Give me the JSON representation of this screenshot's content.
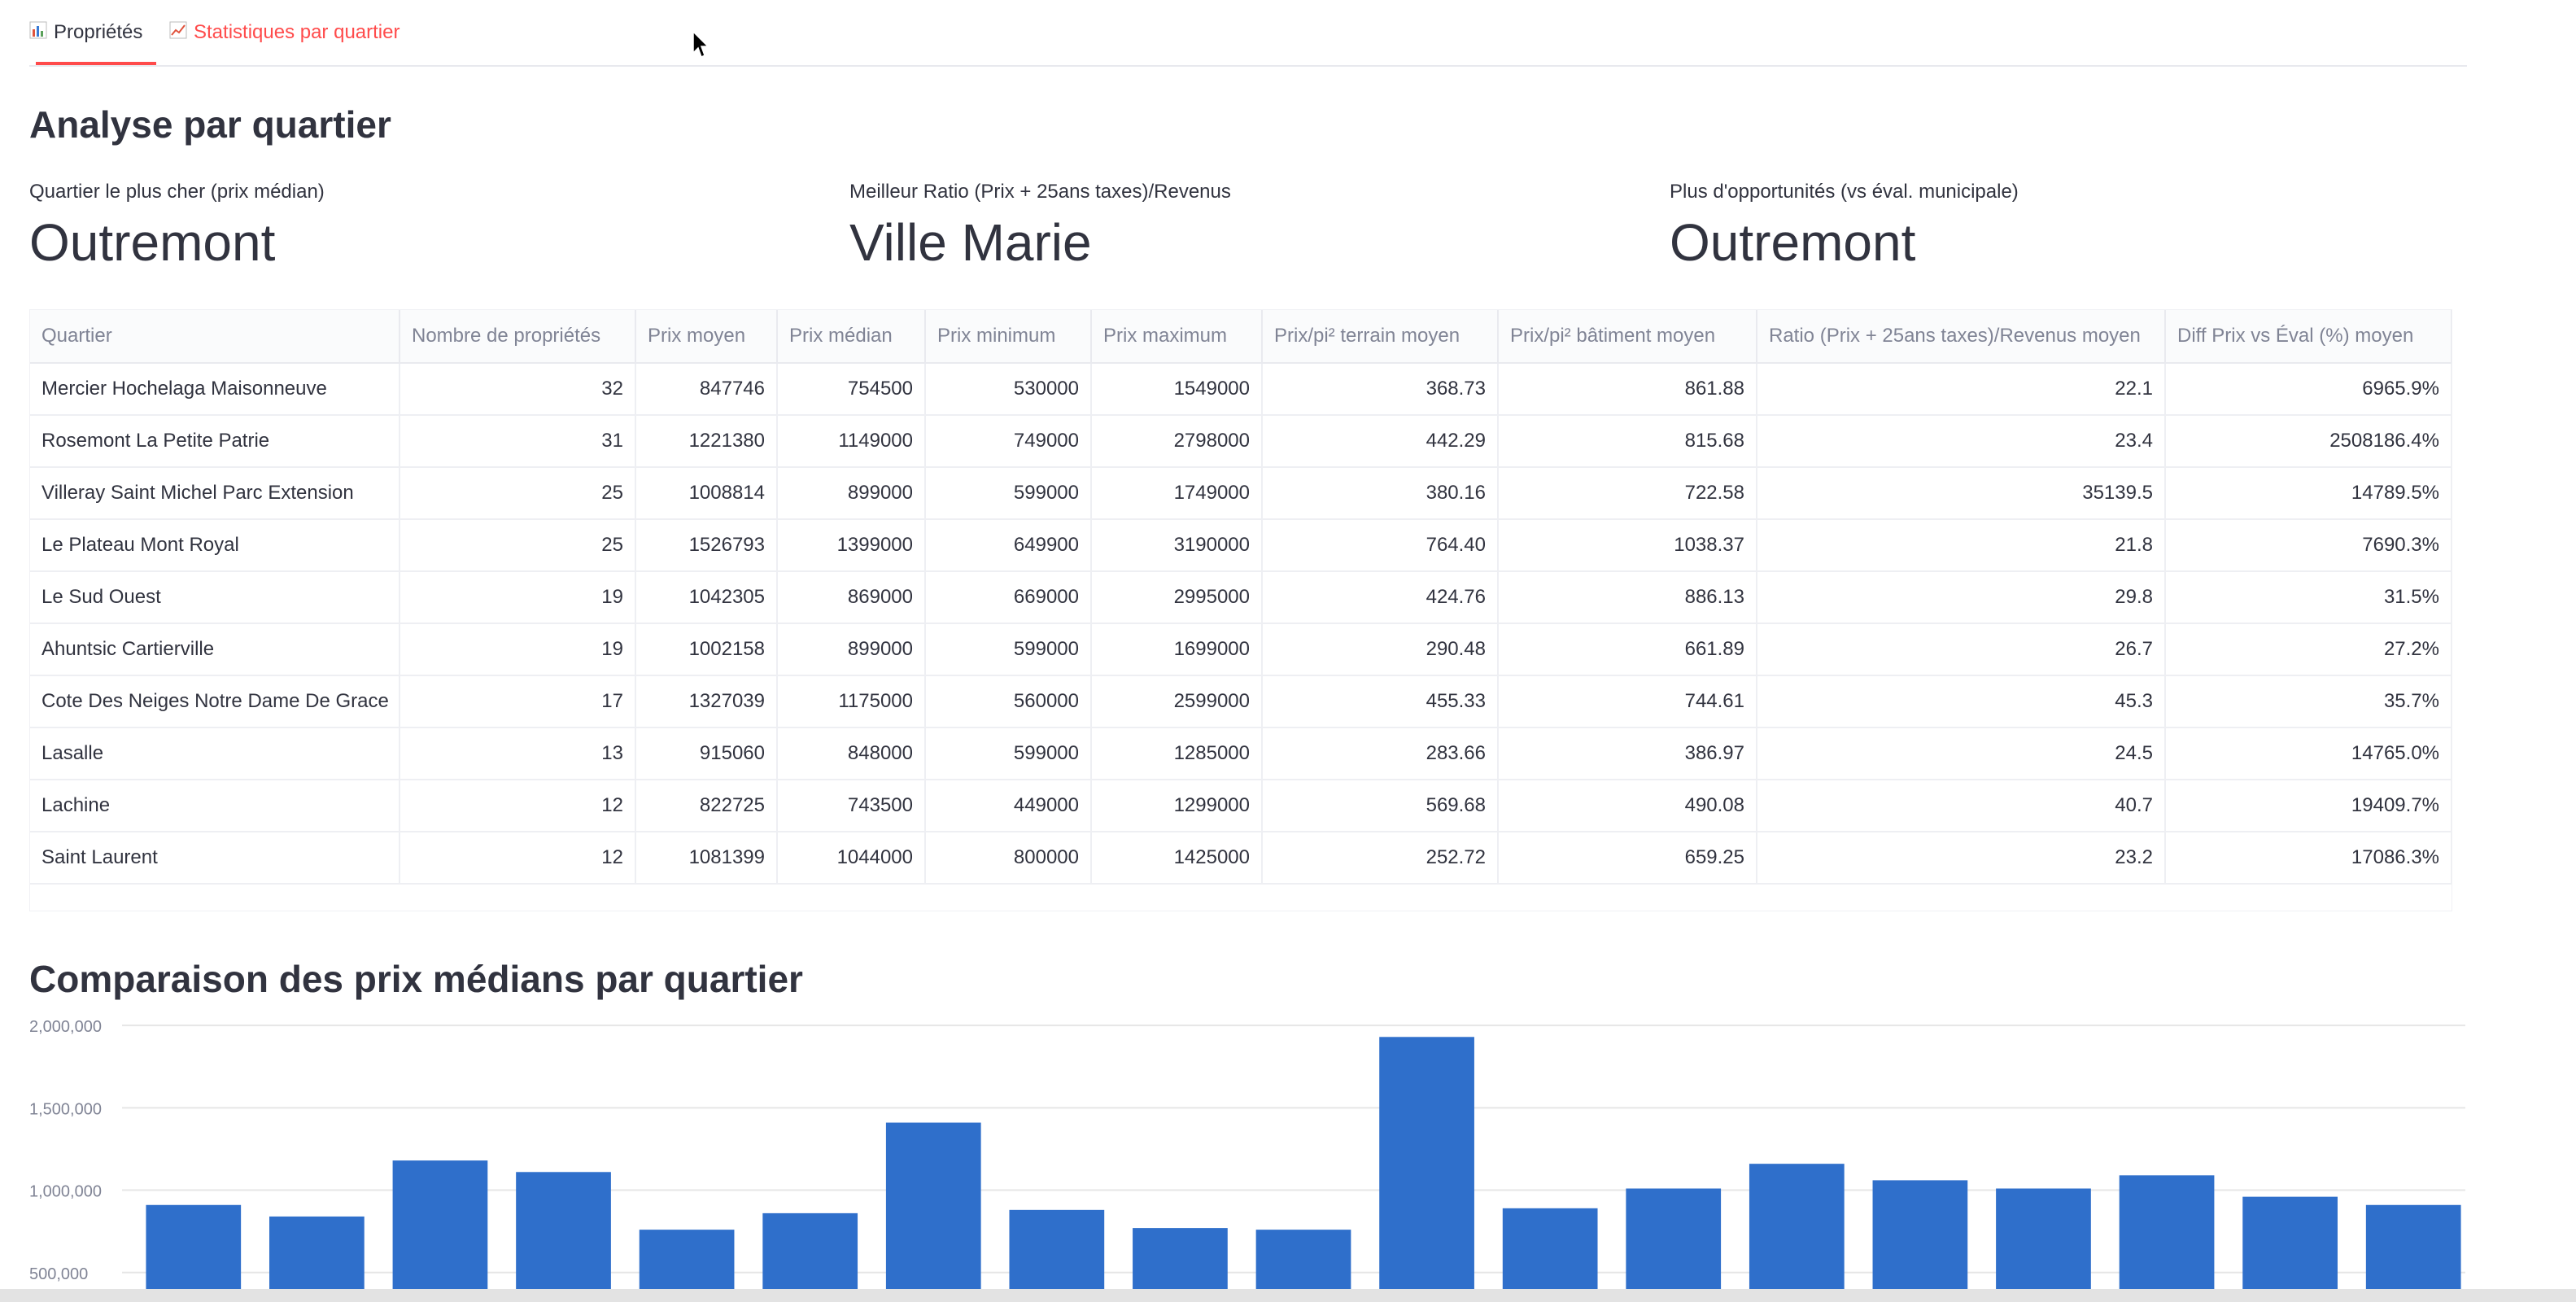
{
  "tabs": [
    {
      "label": "Propriétés",
      "icon": "bar-chart-icon"
    },
    {
      "label": "Statistiques par quartier",
      "icon": "line-chart-icon"
    }
  ],
  "section_title": "Analyse par quartier",
  "metrics": [
    {
      "label": "Quartier le plus cher (prix médian)",
      "value": "Outremont"
    },
    {
      "label": "Meilleur Ratio (Prix + 25ans taxes)/Revenus",
      "value": "Ville Marie"
    },
    {
      "label": "Plus d'opportunités (vs éval. municipale)",
      "value": "Outremont"
    }
  ],
  "table": {
    "columns": [
      "Quartier",
      "Nombre de propriétés",
      "Prix moyen",
      "Prix médian",
      "Prix minimum",
      "Prix maximum",
      "Prix/pi² terrain moyen",
      "Prix/pi² bâtiment moyen",
      "Ratio (Prix + 25ans taxes)/Revenus moyen",
      "Diff Prix vs Éval (%) moyen"
    ],
    "rows": [
      [
        "Mercier Hochelaga Maisonneuve",
        "32",
        "847746",
        "754500",
        "530000",
        "1549000",
        "368.73",
        "861.88",
        "22.1",
        "6965.9%"
      ],
      [
        "Rosemont La Petite Patrie",
        "31",
        "1221380",
        "1149000",
        "749000",
        "2798000",
        "442.29",
        "815.68",
        "23.4",
        "2508186.4%"
      ],
      [
        "Villeray Saint Michel Parc Extension",
        "25",
        "1008814",
        "899000",
        "599000",
        "1749000",
        "380.16",
        "722.58",
        "35139.5",
        "14789.5%"
      ],
      [
        "Le Plateau Mont Royal",
        "25",
        "1526793",
        "1399000",
        "649900",
        "3190000",
        "764.40",
        "1038.37",
        "21.8",
        "7690.3%"
      ],
      [
        "Le Sud Ouest",
        "19",
        "1042305",
        "869000",
        "669000",
        "2995000",
        "424.76",
        "886.13",
        "29.8",
        "31.5%"
      ],
      [
        "Ahuntsic Cartierville",
        "19",
        "1002158",
        "899000",
        "599000",
        "1699000",
        "290.48",
        "661.89",
        "26.7",
        "27.2%"
      ],
      [
        "Cote Des Neiges Notre Dame De Grace",
        "17",
        "1327039",
        "1175000",
        "560000",
        "2599000",
        "455.33",
        "744.61",
        "45.3",
        "35.7%"
      ],
      [
        "Lasalle",
        "13",
        "915060",
        "848000",
        "599000",
        "1285000",
        "283.66",
        "386.97",
        "24.5",
        "14765.0%"
      ],
      [
        "Lachine",
        "12",
        "822725",
        "743500",
        "449000",
        "1299000",
        "569.68",
        "490.08",
        "40.7",
        "19409.7%"
      ],
      [
        "Saint Laurent",
        "12",
        "1081399",
        "1044000",
        "800000",
        "1425000",
        "252.72",
        "659.25",
        "23.2",
        "17086.3%"
      ]
    ]
  },
  "chart_title": "Comparaison des prix médians par quartier",
  "chart_data": {
    "type": "bar",
    "title": "Comparaison des prix médians par quartier",
    "xlabel": "",
    "ylabel": "",
    "ylim": [
      400000,
      2050000
    ],
    "yticks": [
      "500,000",
      "1,000,000",
      "1,500,000",
      "2,000,000"
    ],
    "ytick_values": [
      500000,
      1000000,
      1500000,
      2000000
    ],
    "grid": true,
    "color": "#2f6fcb",
    "values": [
      910000,
      840000,
      1180000,
      1110000,
      760000,
      860000,
      1410000,
      880000,
      770000,
      760000,
      1930000,
      890000,
      1010000,
      1160000,
      1060000,
      1010000,
      1090000,
      960000,
      910000
    ]
  }
}
